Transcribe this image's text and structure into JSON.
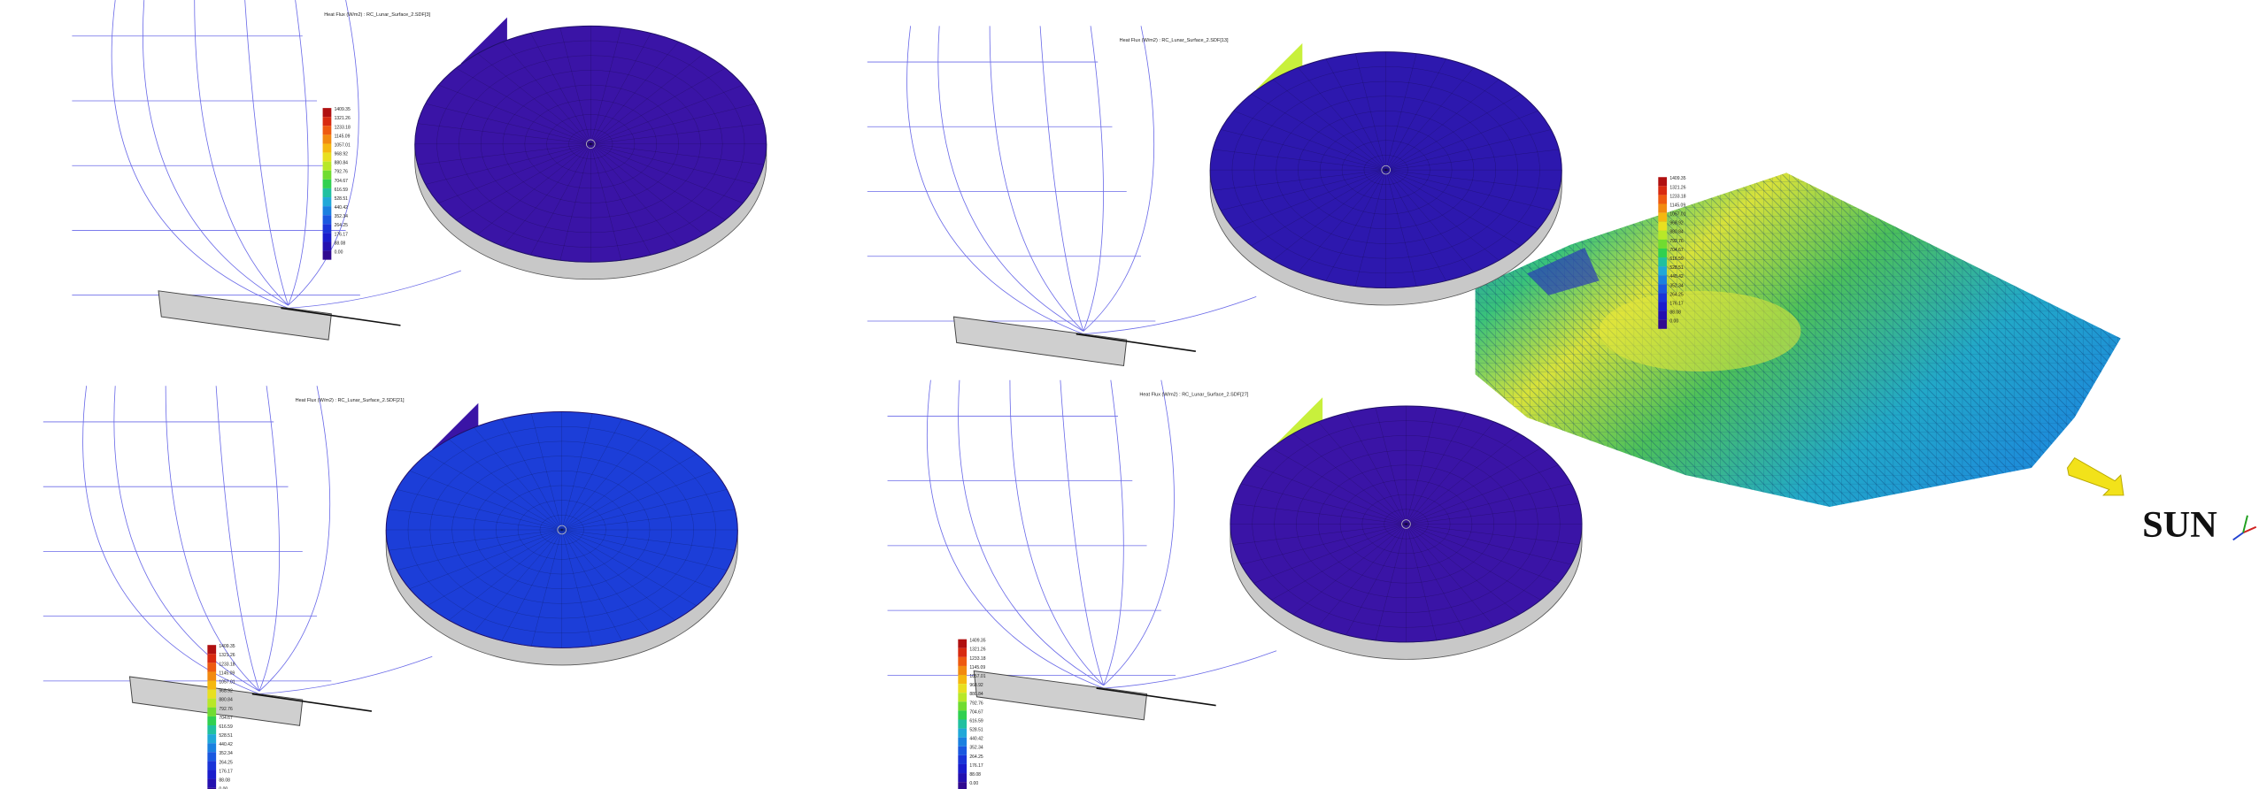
{
  "panels": [
    {
      "title": "Heat Flux (W/m2) : RC_Lunar_Surface_2.SDF[3]"
    },
    {
      "title": "Heat Flux (W/m2) : RC_Lunar_Surface_2.SDF[13]"
    },
    {
      "title": "Heat Flux (W/m2) : RC_Lunar_Surface_2.SDF[21]"
    },
    {
      "title": "Heat Flux (W/m2) : RC_Lunar_Surface_2.SDF[27]"
    }
  ],
  "legend": [
    "1409.35",
    "1321.26",
    "1233.18",
    "1145.09",
    "1057.01",
    "968.92",
    "880.84",
    "792.76",
    "704.67",
    "616.59",
    "528.51",
    "440.42",
    "352.34",
    "264.25",
    "176.17",
    "88.08",
    "0.00"
  ],
  "sun_label": "SUN"
}
